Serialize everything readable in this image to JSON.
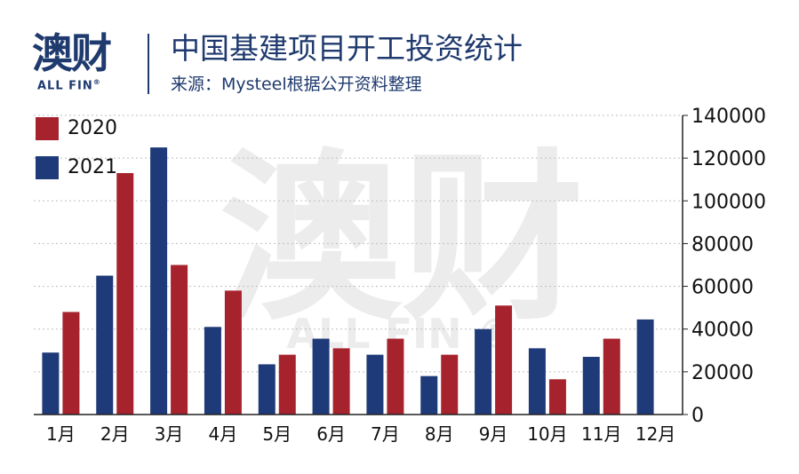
{
  "header": {
    "logo_main": "澳财",
    "logo_sub": "ALL FIN",
    "logo_reg": "®",
    "title": "中国基建项目开工投资统计",
    "subtitle": "来源：Mysteel根据公开资料整理"
  },
  "watermark": {
    "main": "澳财",
    "sub": "ALL FIN ®"
  },
  "colors": {
    "2020": "#a6232e",
    "2021": "#1f3a78"
  },
  "chart_data": {
    "type": "bar",
    "categories": [
      "1月",
      "2月",
      "3月",
      "4月",
      "5月",
      "6月",
      "7月",
      "8月",
      "9月",
      "10月",
      "11月",
      "12月"
    ],
    "series": [
      {
        "name": "2021",
        "values": [
          29000,
          65000,
          125000,
          41000,
          23500,
          35500,
          28000,
          18000,
          40000,
          31000,
          27000,
          44500
        ]
      },
      {
        "name": "2020",
        "values": [
          48000,
          113000,
          70000,
          58000,
          28000,
          31000,
          35500,
          28000,
          51000,
          16500,
          35500,
          null
        ]
      }
    ],
    "ylim": [
      0,
      140000
    ],
    "yticks": [
      "0",
      "20000",
      "40000",
      "60000",
      "80000",
      "100000",
      "120000",
      "140000"
    ],
    "y_axis_position": "right",
    "grid": true,
    "legend_position": "top-left",
    "legend": [
      "2020",
      "2021"
    ]
  }
}
